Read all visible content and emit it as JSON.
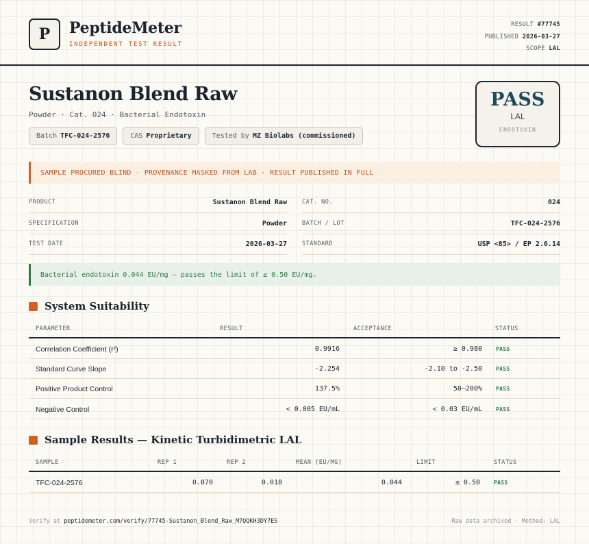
{
  "header": {
    "logo_letter": "P",
    "brand": "PeptideMeter",
    "brand_sub": "INDEPENDENT TEST RESULT",
    "result_label": "RESULT",
    "result_value": "#77745",
    "published_label": "PUBLISHED",
    "published_value": "2026-03-27",
    "scope_label": "SCOPE",
    "scope_value": "LAL"
  },
  "title": "Sustanon Blend Raw",
  "subtitle": "Powder · Cat. 024 · Bacterial Endotoxin",
  "chips": [
    {
      "label": "Batch",
      "value": "TFC-024-2576"
    },
    {
      "label": "CAS",
      "value": "Proprietary"
    },
    {
      "label": "Tested by",
      "value": "MZ Biolabs (commissioned)"
    }
  ],
  "stamp": {
    "verdict": "PASS",
    "method": "LAL",
    "category": "ENDOTOXIN"
  },
  "notice": "SAMPLE PROCURED BLIND · PROVENANCE MASKED FROM LAB · RESULT PUBLISHED IN FULL",
  "info": {
    "product": {
      "k": "PRODUCT",
      "v": "Sustanon Blend Raw"
    },
    "cat_no": {
      "k": "CAT. NO.",
      "v": "024"
    },
    "specification": {
      "k": "SPECIFICATION",
      "v": "Powder"
    },
    "batch": {
      "k": "BATCH / LOT",
      "v": "TFC-024-2576"
    },
    "test_date": {
      "k": "TEST DATE",
      "v": "2026-03-27"
    },
    "standard": {
      "k": "STANDARD",
      "v": "USP <85> / EP 2.6.14"
    }
  },
  "result_note": "Bacterial endotoxin 0.044 EU/mg — passes the limit of ≤ 0.50 EU/mg.",
  "suitability": {
    "title": "System Suitability",
    "headers": [
      "PARAMETER",
      "RESULT",
      "ACCEPTANCE",
      "STATUS"
    ],
    "rows": [
      {
        "parameter": "Correlation Coefficient (r²)",
        "result": "0.9916",
        "acceptance": "≥ 0.980",
        "status": "PASS"
      },
      {
        "parameter": "Standard Curve Slope",
        "result": "-2.254",
        "acceptance": "-2.10 to -2.50",
        "status": "PASS"
      },
      {
        "parameter": "Positive Product Control",
        "result": "137.5%",
        "acceptance": "50–200%",
        "status": "PASS"
      },
      {
        "parameter": "Negative Control",
        "result": "< 0.005 EU/mL",
        "acceptance": "< 0.03 EU/mL",
        "status": "PASS"
      }
    ]
  },
  "samples": {
    "title": "Sample Results — Kinetic Turbidimetric LAL",
    "headers": [
      "SAMPLE",
      "REP 1",
      "REP 2",
      "MEAN (EU/MG)",
      "LIMIT",
      "STATUS"
    ],
    "rows": [
      {
        "sample": "TFC-024-2576",
        "rep1": "0.070",
        "rep2": "0.018",
        "mean": "0.044",
        "limit": "≤ 0.50",
        "status": "PASS"
      }
    ]
  },
  "footer": {
    "verify_label": "Verify at",
    "verify_url": "peptidemeter.com/verify/77745-Sustanon_Blend_Raw_M7QQKH3DY7ES",
    "right": "Raw data archived · Method: LAL"
  },
  "colors": {
    "accent": "#d2601f",
    "pass": "#2e7a45",
    "ink": "#1c2430",
    "stamp_text": "#1f4a5e"
  }
}
